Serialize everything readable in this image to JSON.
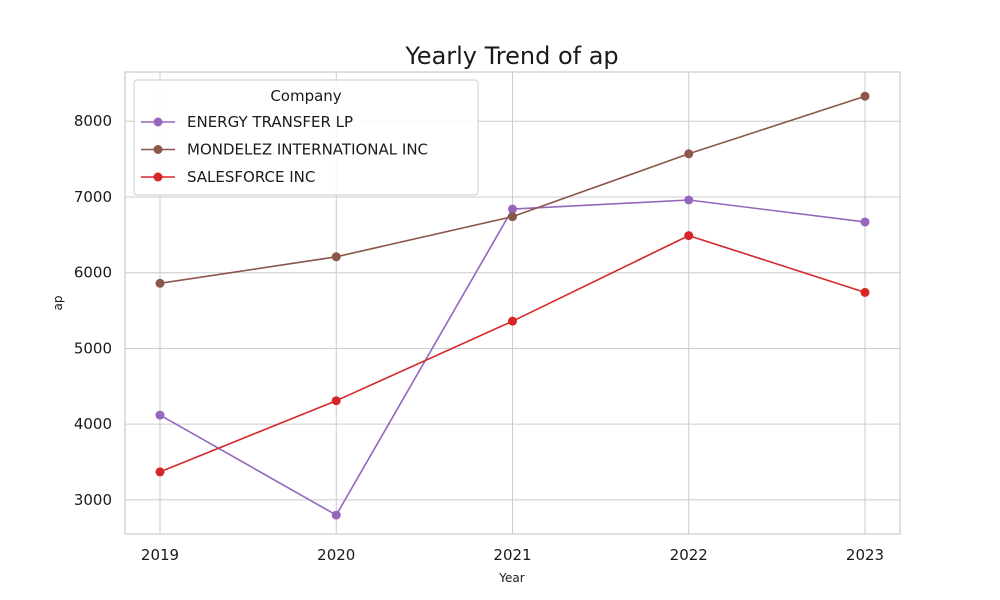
{
  "chart_data": {
    "type": "line",
    "title": "Yearly Trend of ap",
    "xlabel": "Year",
    "ylabel": "ap",
    "categories": [
      "2019",
      "2020",
      "2021",
      "2022",
      "2023"
    ],
    "ylim": [
      2550,
      8650
    ],
    "yticks": [
      3000,
      4000,
      5000,
      6000,
      7000,
      8000
    ],
    "grid": true,
    "legend": {
      "title": "Company",
      "placement": "top-left"
    },
    "series": [
      {
        "name": "ENERGY TRANSFER LP",
        "color": "#9467bd",
        "values": [
          4120,
          2800,
          6840,
          6960,
          6670
        ]
      },
      {
        "name": "MONDELEZ INTERNATIONAL INC",
        "color": "#8c564b",
        "values": [
          5860,
          6210,
          6740,
          7570,
          8330
        ]
      },
      {
        "name": "SALESFORCE INC",
        "color": "#d62728",
        "values": [
          3370,
          4310,
          5360,
          6490,
          5740
        ]
      }
    ]
  }
}
